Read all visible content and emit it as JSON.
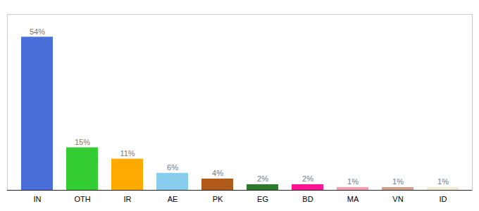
{
  "chart_data": {
    "type": "bar",
    "categories": [
      "IN",
      "OTH",
      "IR",
      "AE",
      "PK",
      "EG",
      "BD",
      "MA",
      "VN",
      "ID"
    ],
    "values": [
      54,
      15,
      11,
      6,
      4,
      2,
      2,
      1,
      1,
      1
    ],
    "value_labels": [
      "54%",
      "15%",
      "11%",
      "6%",
      "4%",
      "2%",
      "2%",
      "1%",
      "1%",
      "1%"
    ],
    "colors": [
      "#4a6fd8",
      "#33cc33",
      "#ffaa00",
      "#88ccee",
      "#b05a1a",
      "#2d7a2d",
      "#ff1493",
      "#f0a0b0",
      "#d0a090",
      "#f0eed8"
    ],
    "ylim": [
      0,
      62
    ],
    "grid": false,
    "data_labels": true,
    "tick_labels": "x"
  }
}
